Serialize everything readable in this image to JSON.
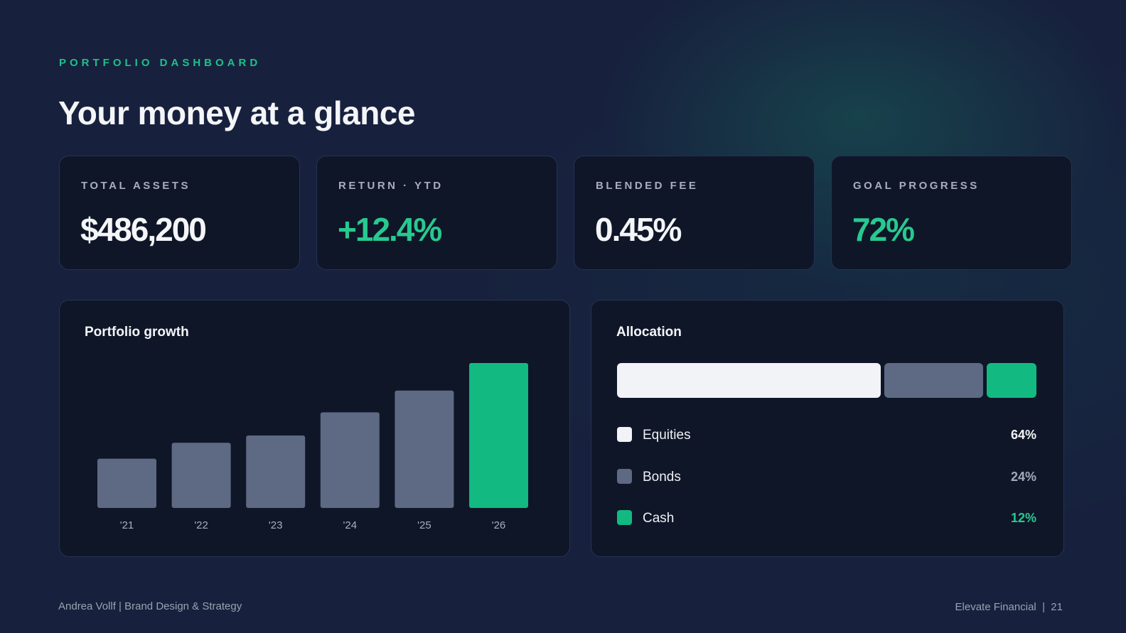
{
  "header": {
    "eyebrow": "PORTFOLIO DASHBOARD",
    "title": "Your money at a glance"
  },
  "kpis": [
    {
      "label": "TOTAL ASSETS",
      "value": "$486,200"
    },
    {
      "label": "RETURN · YTD",
      "value": "+12.4%"
    },
    {
      "label": "BLENDED FEE",
      "value": "0.45%"
    },
    {
      "label": "GOAL PROGRESS",
      "value": "72%"
    }
  ],
  "growth": {
    "title": "Portfolio growth"
  },
  "chart_data": {
    "type": "bar",
    "title": "Portfolio growth",
    "categories": [
      "'21",
      "'22",
      "'23",
      "'24",
      "'25",
      "'26"
    ],
    "values": [
      34,
      45,
      50,
      66,
      81,
      100
    ],
    "ylim": [
      0,
      100
    ],
    "highlight_index": 5,
    "grid": false,
    "colors": {
      "default": "#5e6a83",
      "highlight": "#12b981"
    }
  },
  "allocation": {
    "title": "Allocation",
    "items": [
      {
        "label": "Equities",
        "value": "64%",
        "share": 64,
        "color": "#f1f3f6",
        "value_color": "#f4f5f7"
      },
      {
        "label": "Bonds",
        "value": "24%",
        "share": 24,
        "color": "#5e6a83",
        "value_color": "#a3aab8"
      },
      {
        "label": "Cash",
        "value": "12%",
        "share": 12,
        "color": "#12b981",
        "value_color": "#27c98f"
      }
    ]
  },
  "footer": {
    "left": "Andrea Vollf | Brand Design & Strategy",
    "right": "Elevate Financial  |  21"
  },
  "colors": {
    "accent": "#1fc08a",
    "background": "#17213d",
    "card": "#0f1628"
  }
}
